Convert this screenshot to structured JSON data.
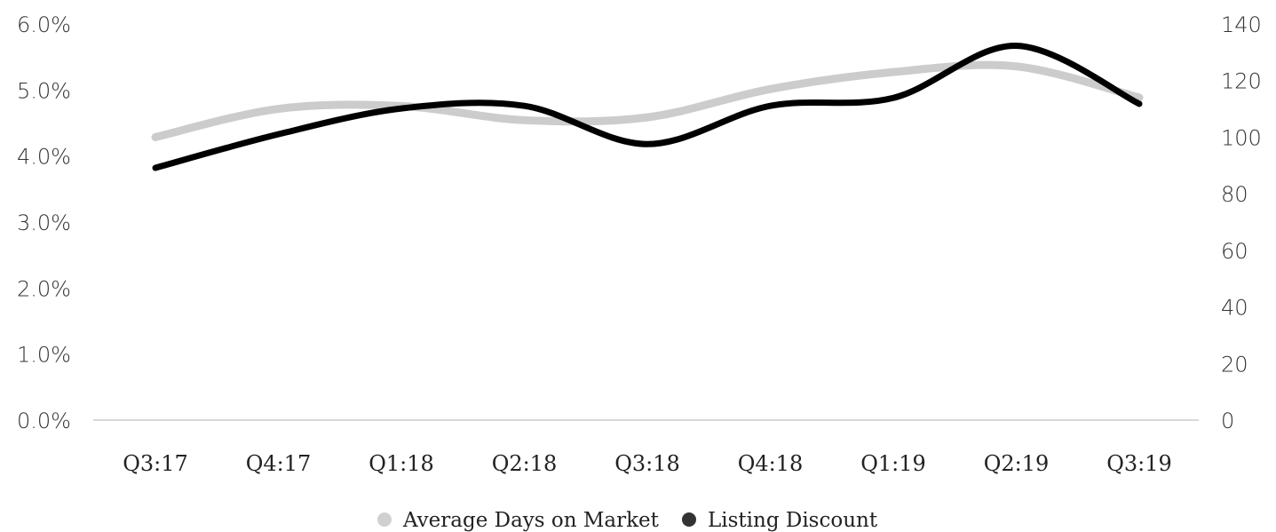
{
  "chart_data": {
    "type": "line",
    "categories": [
      "Q3:17",
      "Q4:17",
      "Q1:18",
      "Q2:18",
      "Q3:18",
      "Q4:18",
      "Q1:19",
      "Q2:19",
      "Q3:19"
    ],
    "series": [
      {
        "name": "Average Days on Market",
        "axis": "right",
        "color": "#cccccc",
        "values": [
          100,
          110,
          111,
          106,
          107,
          117,
          123,
          125,
          114
        ]
      },
      {
        "name": "Listing Discount",
        "axis": "left",
        "color": "#000000",
        "values": [
          3.82,
          4.33,
          4.72,
          4.76,
          4.18,
          4.76,
          4.88,
          5.67,
          4.79
        ]
      }
    ],
    "y_left": {
      "ylim": [
        0,
        6
      ],
      "ticks": [
        0,
        1,
        2,
        3,
        4,
        5,
        6
      ],
      "tick_labels": [
        "0.0%",
        "1.0%",
        "2.0%",
        "3.0%",
        "4.0%",
        "5.0%",
        "6.0%"
      ]
    },
    "y_right": {
      "ylim": [
        0,
        140
      ],
      "ticks": [
        0,
        20,
        40,
        60,
        80,
        100,
        120,
        140
      ],
      "tick_labels": [
        "0",
        "20",
        "40",
        "60",
        "80",
        "100",
        "120",
        "140"
      ]
    },
    "title": "",
    "xlabel": "",
    "ylabel": "",
    "grid": false,
    "legend_position": "bottom-center",
    "legend_marker_colors": [
      "#d0d0d0",
      "#333333"
    ]
  }
}
